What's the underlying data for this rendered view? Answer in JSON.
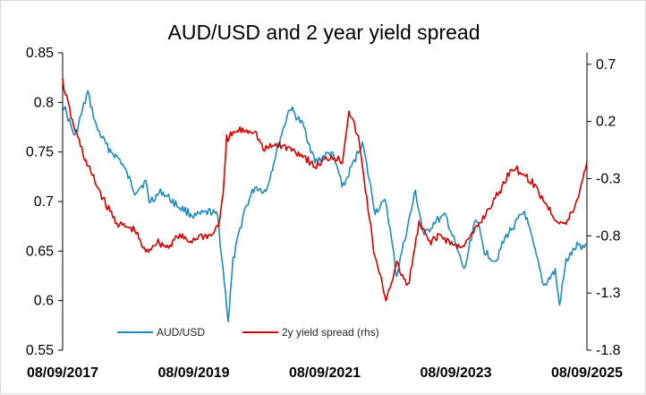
{
  "chart_data": {
    "type": "line",
    "title": "AUD/USD and 2 year yield spread",
    "xlabel": "",
    "ylabel": "",
    "y2label": "",
    "x_tick_labels": [
      "08/09/2017",
      "08/09/2019",
      "08/09/2021",
      "08/09/2023",
      "08/09/2025"
    ],
    "x_range": [
      "2017-09-08",
      "2025-09-08"
    ],
    "ylim": [
      0.55,
      0.85
    ],
    "y_ticks": [
      "0.85",
      "0.8",
      "0.75",
      "0.7",
      "0.65",
      "0.6",
      "0.55"
    ],
    "y2lim": [
      -1.8,
      0.8
    ],
    "y2_ticks": [
      "0.7",
      "0.2",
      "-0.3",
      "-0.8",
      "-1.3",
      "-1.8"
    ],
    "grid": false,
    "legend_position": "bottom-center",
    "series": [
      {
        "name": "AUD/USD",
        "axis": "left",
        "color": "#1f8bbd",
        "points": [
          [
            "2017-09-08",
            0.8
          ],
          [
            "2017-11-15",
            0.765
          ],
          [
            "2018-01-26",
            0.81
          ],
          [
            "2018-03-15",
            0.775
          ],
          [
            "2018-05-15",
            0.755
          ],
          [
            "2018-08-01",
            0.74
          ],
          [
            "2018-10-15",
            0.71
          ],
          [
            "2018-12-15",
            0.72
          ],
          [
            "2019-01-03",
            0.7
          ],
          [
            "2019-03-15",
            0.71
          ],
          [
            "2019-06-15",
            0.695
          ],
          [
            "2019-09-15",
            0.685
          ],
          [
            "2019-12-15",
            0.69
          ],
          [
            "2020-01-20",
            0.685
          ],
          [
            "2020-03-19",
            0.58
          ],
          [
            "2020-04-15",
            0.64
          ],
          [
            "2020-06-15",
            0.69
          ],
          [
            "2020-08-15",
            0.715
          ],
          [
            "2020-10-15",
            0.71
          ],
          [
            "2020-12-20",
            0.755
          ],
          [
            "2021-02-25",
            0.795
          ],
          [
            "2021-05-15",
            0.775
          ],
          [
            "2021-07-15",
            0.74
          ],
          [
            "2021-10-15",
            0.75
          ],
          [
            "2021-12-20",
            0.715
          ],
          [
            "2022-04-05",
            0.76
          ],
          [
            "2022-06-15",
            0.69
          ],
          [
            "2022-08-15",
            0.7
          ],
          [
            "2022-10-13",
            0.625
          ],
          [
            "2023-01-26",
            0.71
          ],
          [
            "2023-03-15",
            0.665
          ],
          [
            "2023-05-15",
            0.68
          ],
          [
            "2023-07-15",
            0.685
          ],
          [
            "2023-10-26",
            0.63
          ],
          [
            "2023-12-28",
            0.685
          ],
          [
            "2024-02-15",
            0.65
          ],
          [
            "2024-04-15",
            0.64
          ],
          [
            "2024-06-15",
            0.665
          ],
          [
            "2024-09-25",
            0.69
          ],
          [
            "2024-11-15",
            0.655
          ],
          [
            "2025-01-10",
            0.615
          ],
          [
            "2025-03-15",
            0.63
          ],
          [
            "2025-04-08",
            0.595
          ],
          [
            "2025-05-15",
            0.64
          ],
          [
            "2025-07-15",
            0.655
          ],
          [
            "2025-09-08",
            0.655
          ]
        ]
      },
      {
        "name": "2y yield spread (rhs)",
        "axis": "right",
        "color": "#d40000",
        "points": [
          [
            "2017-09-08",
            0.55
          ],
          [
            "2017-11-01",
            0.2
          ],
          [
            "2018-01-15",
            -0.15
          ],
          [
            "2018-03-15",
            -0.35
          ],
          [
            "2018-05-15",
            -0.55
          ],
          [
            "2018-07-15",
            -0.7
          ],
          [
            "2018-10-15",
            -0.75
          ],
          [
            "2018-12-15",
            -0.95
          ],
          [
            "2019-02-15",
            -0.85
          ],
          [
            "2019-04-15",
            -0.9
          ],
          [
            "2019-06-15",
            -0.8
          ],
          [
            "2019-08-15",
            -0.85
          ],
          [
            "2019-10-15",
            -0.8
          ],
          [
            "2019-12-15",
            -0.8
          ],
          [
            "2020-01-25",
            -0.7
          ],
          [
            "2020-02-20",
            -0.45
          ],
          [
            "2020-03-10",
            0.05
          ],
          [
            "2020-05-15",
            0.12
          ],
          [
            "2020-08-15",
            0.12
          ],
          [
            "2020-09-30",
            -0.05
          ],
          [
            "2020-12-15",
            0.0
          ],
          [
            "2021-03-15",
            -0.05
          ],
          [
            "2021-05-15",
            -0.1
          ],
          [
            "2021-07-15",
            -0.2
          ],
          [
            "2021-10-15",
            -0.1
          ],
          [
            "2021-12-15",
            -0.15
          ],
          [
            "2022-01-20",
            0.3
          ],
          [
            "2022-03-15",
            0.05
          ],
          [
            "2022-06-15",
            -1.0
          ],
          [
            "2022-08-15",
            -1.35
          ],
          [
            "2022-10-15",
            -1.05
          ],
          [
            "2022-12-15",
            -1.25
          ],
          [
            "2023-02-15",
            -0.7
          ],
          [
            "2023-04-15",
            -0.85
          ],
          [
            "2023-06-15",
            -0.8
          ],
          [
            "2023-09-15",
            -0.9
          ],
          [
            "2023-11-15",
            -0.85
          ],
          [
            "2024-01-15",
            -0.7
          ],
          [
            "2024-03-15",
            -0.55
          ],
          [
            "2024-05-15",
            -0.4
          ],
          [
            "2024-07-15",
            -0.2
          ],
          [
            "2024-09-15",
            -0.25
          ],
          [
            "2024-11-15",
            -0.35
          ],
          [
            "2025-01-15",
            -0.5
          ],
          [
            "2025-03-15",
            -0.65
          ],
          [
            "2025-05-15",
            -0.7
          ],
          [
            "2025-07-15",
            -0.5
          ],
          [
            "2025-09-08",
            -0.15
          ]
        ]
      }
    ]
  }
}
